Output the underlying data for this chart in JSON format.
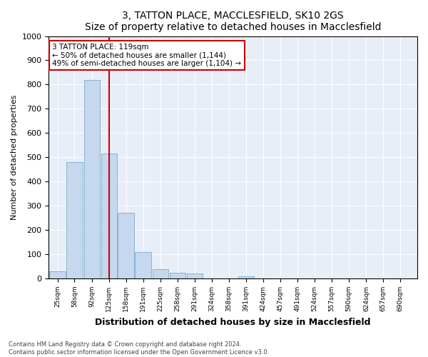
{
  "title1": "3, TATTON PLACE, MACCLESFIELD, SK10 2GS",
  "title2": "Size of property relative to detached houses in Macclesfield",
  "xlabel": "Distribution of detached houses by size in Macclesfield",
  "ylabel": "Number of detached properties",
  "footer1": "Contains HM Land Registry data © Crown copyright and database right 2024.",
  "footer2": "Contains public sector information licensed under the Open Government Licence v3.0.",
  "annotation_line0": "3 TATTON PLACE: 119sqm",
  "annotation_line1": "← 50% of detached houses are smaller (1,144)",
  "annotation_line2": "49% of semi-detached houses are larger (1,104) →",
  "bar_color": "#c5d8ee",
  "bar_edge_color": "#7aaace",
  "vline_color": "#cc0000",
  "vline_x": 125,
  "annotation_box_color": "#ffffff",
  "annotation_box_edge": "#cc0000",
  "background_color": "#e8eef8",
  "grid_color": "#ffffff",
  "categories": [
    25,
    58,
    92,
    125,
    158,
    191,
    225,
    258,
    291,
    324,
    358,
    391,
    424,
    457,
    491,
    524,
    557,
    590,
    624,
    657,
    690
  ],
  "bar_heights": [
    30,
    480,
    820,
    515,
    270,
    110,
    38,
    25,
    20,
    0,
    0,
    10,
    0,
    0,
    0,
    0,
    0,
    0,
    0,
    0,
    0
  ],
  "bin_width": 32,
  "ylim": [
    0,
    1000
  ],
  "yticks": [
    0,
    100,
    200,
    300,
    400,
    500,
    600,
    700,
    800,
    900,
    1000
  ],
  "title_fontsize": 10,
  "xlabel_fontsize": 9,
  "ylabel_fontsize": 8
}
